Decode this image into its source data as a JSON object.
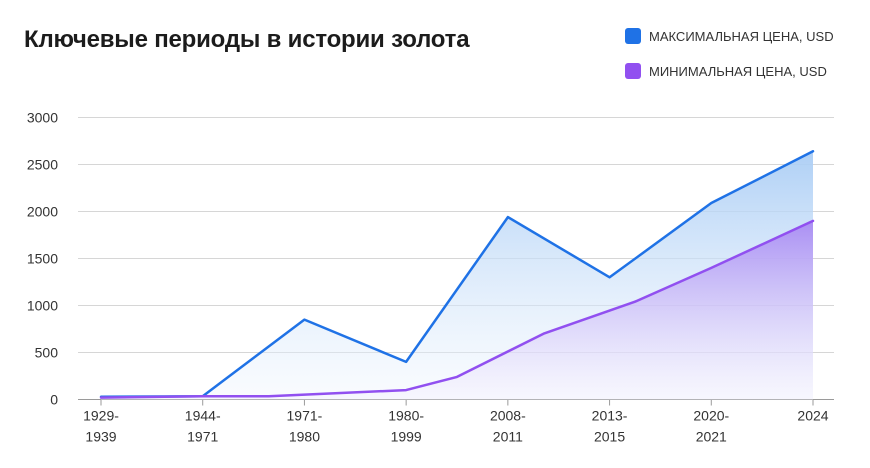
{
  "chart_data": {
    "type": "area",
    "title": "Ключевые периоды в истории золота",
    "categories": [
      "1929-1939",
      "1944-1971",
      "1971-1980",
      "1980-1999",
      "2008-2011",
      "2013-2015",
      "2020-2021",
      "2024"
    ],
    "yticks": [
      0,
      500,
      1000,
      1500,
      2000,
      2500,
      3000
    ],
    "ylim": [
      0,
      3000
    ],
    "grid": true,
    "legend_position": "top-right",
    "series": [
      {
        "name": "МАКСИМАЛЬНАЯ ЦЕНА, USD",
        "color": "#1f72e6",
        "x": [
          0,
          1,
          2,
          3,
          4,
          5,
          6,
          7
        ],
        "y": [
          30,
          35,
          850,
          400,
          1940,
          1300,
          2090,
          2640
        ]
      },
      {
        "name": "МИНИМАЛЬНАЯ ЦЕНА, USD",
        "color": "#9150f0",
        "x": [
          0,
          1,
          1.65,
          3,
          3.5,
          4.35,
          5.25,
          6,
          7
        ],
        "y": [
          20,
          35,
          35,
          100,
          240,
          700,
          1040,
          1400,
          1900
        ]
      }
    ]
  }
}
